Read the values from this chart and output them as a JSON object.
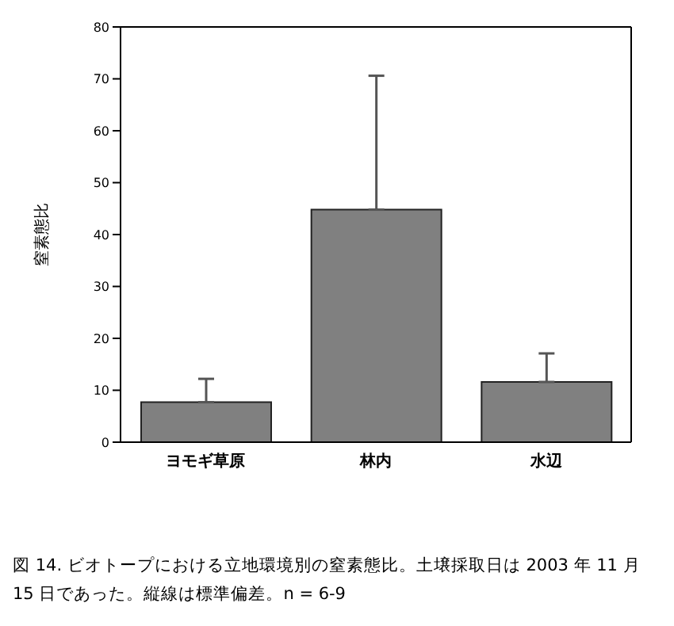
{
  "chart_data": {
    "type": "bar",
    "ylabel": "窒素態比",
    "categories": [
      "ヨモギ草原",
      "林内",
      "水辺"
    ],
    "values": [
      7.7,
      44.8,
      11.6
    ],
    "errors": [
      [
        7.7,
        12.2
      ],
      [
        44.8,
        70.6
      ],
      [
        11.6,
        17.1
      ]
    ],
    "color": "#808080",
    "ylim": [
      0,
      80
    ],
    "yticks": [
      0,
      10,
      20,
      30,
      40,
      50,
      60,
      70,
      80
    ],
    "grid": false,
    "legend": false,
    "annotations": [
      "図 14.  ビオトープにおける立地環境別の窒素態比。土壌採取日は 2003 年 11 月 15 日であった。縦線は標準偏差。n = 6-9"
    ]
  }
}
